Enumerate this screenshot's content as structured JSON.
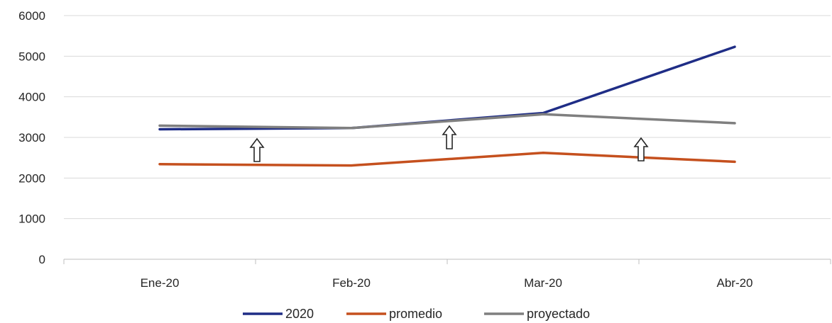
{
  "chart_data": {
    "type": "line",
    "title": "",
    "xlabel": "",
    "ylabel": "",
    "categories": [
      "Ene-20",
      "Feb-20",
      "Mar-20",
      "Abr-20"
    ],
    "ylim": [
      0,
      6000
    ],
    "yticks": [
      0,
      1000,
      2000,
      3000,
      4000,
      5000,
      6000
    ],
    "grid": "horizontal",
    "legend_position": "bottom",
    "series": [
      {
        "name": "2020",
        "values": [
          3200,
          3230,
          3600,
          5230
        ],
        "color": "#1F2D86"
      },
      {
        "name": "promedio",
        "values": [
          2340,
          2310,
          2620,
          2400
        ],
        "color": "#C5501E"
      },
      {
        "name": "proyectado",
        "values": [
          3290,
          3230,
          3570,
          3350
        ],
        "color": "#7F7F7F"
      }
    ],
    "annotations": [
      {
        "type": "up-arrow",
        "between": [
          "Ene-20",
          "Feb-20"
        ]
      },
      {
        "type": "up-arrow",
        "between": [
          "Feb-20",
          "Mar-20"
        ]
      },
      {
        "type": "up-arrow",
        "between": [
          "Mar-20",
          "Abr-20"
        ]
      }
    ]
  }
}
